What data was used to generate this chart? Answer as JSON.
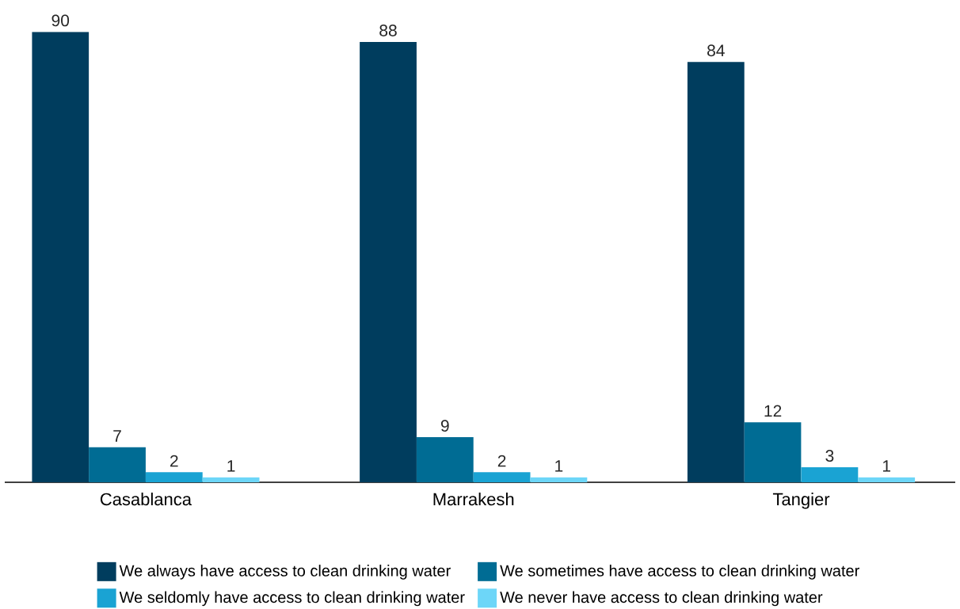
{
  "chart_data": {
    "type": "bar",
    "categories": [
      "Casablanca",
      "Marrakesh",
      "Tangier"
    ],
    "series": [
      {
        "name": "We always have access to clean drinking water",
        "color": "#003d5e",
        "values": [
          90,
          88,
          84
        ]
      },
      {
        "name": "We sometimes have access to clean drinking water",
        "color": "#006c94",
        "values": [
          7,
          9,
          12
        ]
      },
      {
        "name": "We seldomly have access to clean drinking water",
        "color": "#1aa3d3",
        "values": [
          2,
          2,
          3
        ]
      },
      {
        "name": "We never have access to clean drinking water",
        "color": "#6dd6f8",
        "values": [
          1,
          1,
          1
        ]
      }
    ],
    "data_labels": true,
    "legend": "bottom"
  }
}
